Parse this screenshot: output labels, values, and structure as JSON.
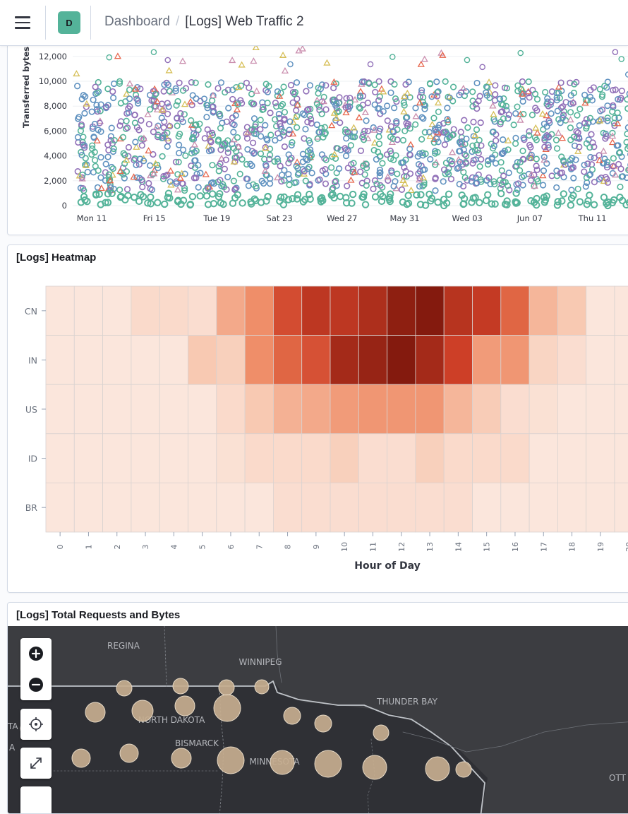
{
  "header": {
    "space_initial": "D",
    "breadcrumb_link": "Dashboard",
    "breadcrumb_separator": "/",
    "breadcrumb_current": "[Logs] Web Traffic 2"
  },
  "scatter_panel": {
    "y_axis_label": "Transferred bytes",
    "y_ticks": [
      "0",
      "2,000",
      "4,000",
      "6,000",
      "8,000",
      "10,000",
      "12,000"
    ],
    "x_ticks": [
      "Mon 11",
      "Fri 15",
      "Tue 19",
      "Sat 23",
      "Wed 27",
      "May 31",
      "Wed 03",
      "Jun 07",
      "Thu 11",
      "M"
    ],
    "series_colors": [
      "#54b399",
      "#6092c0",
      "#9170b8",
      "#d6bf57",
      "#e7664c",
      "#ca8eae"
    ]
  },
  "heatmap_panel": {
    "title": "[Logs] Heatmap",
    "x_axis_label": "Hour of Day"
  },
  "map_panel": {
    "title": "[Logs] Total Requests and Bytes",
    "labels": {
      "regina": "REGINA",
      "winnipeg": "WINNIPEG",
      "thunder_bay": "THUNDER BAY",
      "north_dakota": "NORTH DAKOTA",
      "bismarck": "BISMARCK",
      "minnesota": "MINNESOTA",
      "edge_left_top": "TA",
      "edge_left_bottom": "A",
      "edge_right": "OTT"
    },
    "controls": {
      "zoom_in": "zoom-in",
      "zoom_out": "zoom-out",
      "locate": "locate",
      "fullscreen": "fullscreen"
    }
  },
  "chart_data": [
    {
      "type": "scatter",
      "title": "",
      "xlabel": "",
      "ylabel": "Transferred bytes",
      "ylim": [
        0,
        12500
      ],
      "x_categories": [
        "Mon 11",
        "Fri 15",
        "Tue 19",
        "Sat 23",
        "Wed 27",
        "May 31",
        "Wed 03",
        "Jun 07",
        "Thu 11",
        "M"
      ],
      "columns_per_label": 4,
      "dense_band": [
        0,
        10000
      ],
      "low_cluster": [
        0,
        1000
      ],
      "sparse_outliers": [
        10000,
        12800
      ],
      "marker_shapes": [
        "circle",
        "triangle"
      ],
      "note": "daily clusters of points per series; 10 tick labels across ~40 days"
    },
    {
      "type": "heatmap",
      "xlabel": "Hour of Day",
      "ylabel": "",
      "x": [
        "0",
        "1",
        "2",
        "3",
        "4",
        "5",
        "6",
        "7",
        "8",
        "9",
        "10",
        "11",
        "12",
        "13",
        "14",
        "15",
        "16",
        "17",
        "18",
        "19",
        "20"
      ],
      "y": [
        "CN",
        "IN",
        "US",
        "ID",
        "BR"
      ],
      "values": [
        [
          5,
          5,
          5,
          12,
          12,
          10,
          35,
          45,
          70,
          80,
          80,
          85,
          95,
          98,
          82,
          78,
          60,
          30,
          22,
          5,
          5
        ],
        [
          5,
          5,
          5,
          5,
          5,
          22,
          18,
          45,
          60,
          68,
          88,
          92,
          98,
          88,
          75,
          40,
          42,
          15,
          10,
          5,
          5
        ],
        [
          5,
          5,
          5,
          5,
          5,
          5,
          12,
          22,
          32,
          35,
          40,
          42,
          42,
          42,
          30,
          20,
          10,
          8,
          5,
          5,
          5
        ],
        [
          5,
          5,
          5,
          5,
          5,
          5,
          8,
          12,
          12,
          12,
          18,
          10,
          10,
          18,
          12,
          12,
          12,
          5,
          5,
          5,
          5
        ],
        [
          5,
          5,
          5,
          5,
          5,
          5,
          5,
          5,
          10,
          10,
          10,
          10,
          10,
          10,
          10,
          5,
          5,
          5,
          5,
          5,
          5
        ]
      ]
    }
  ]
}
